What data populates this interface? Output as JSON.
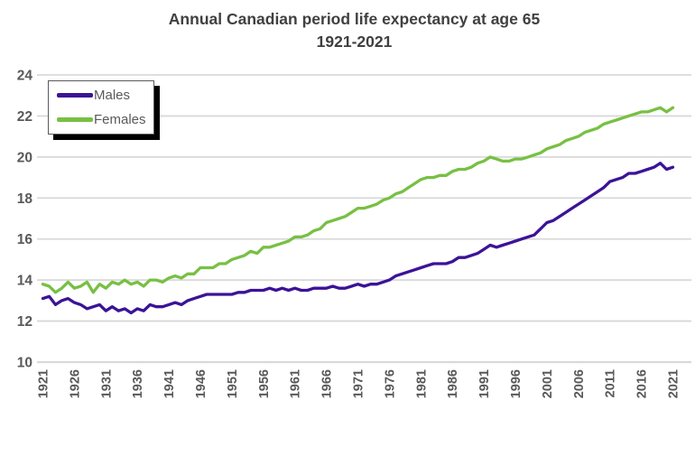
{
  "title": {
    "line1": "Annual Canadian period life expectancy at age 65",
    "line2": "1921-2021"
  },
  "colors": {
    "males_line": "#3B1397",
    "females_line": "#77C043",
    "gridline": "#D9D9D9",
    "axis_labels": "#595959",
    "title_text": "#404040",
    "legend_border": "#595959",
    "legend_shadow": "#000000",
    "background": "#FFFFFF"
  },
  "chart_data": {
    "type": "line",
    "title": "Annual Canadian period life expectancy at age 65",
    "subtitle": "1921-2021",
    "xlabel": "",
    "ylabel": "",
    "ylim": [
      10,
      24
    ],
    "yticks": [
      10,
      12,
      14,
      16,
      18,
      20,
      22,
      24
    ],
    "xticks": [
      1921,
      1926,
      1931,
      1936,
      1941,
      1946,
      1951,
      1956,
      1961,
      1966,
      1971,
      1976,
      1981,
      1986,
      1991,
      1996,
      2001,
      2006,
      2011,
      2016,
      2021
    ],
    "grid": true,
    "legend_position": "top-left",
    "years": [
      1921,
      1922,
      1923,
      1924,
      1925,
      1926,
      1927,
      1928,
      1929,
      1930,
      1931,
      1932,
      1933,
      1934,
      1935,
      1936,
      1937,
      1938,
      1939,
      1940,
      1941,
      1942,
      1943,
      1944,
      1945,
      1946,
      1947,
      1948,
      1949,
      1950,
      1951,
      1952,
      1953,
      1954,
      1955,
      1956,
      1957,
      1958,
      1959,
      1960,
      1961,
      1962,
      1963,
      1964,
      1965,
      1966,
      1967,
      1968,
      1969,
      1970,
      1971,
      1972,
      1973,
      1974,
      1975,
      1976,
      1977,
      1978,
      1979,
      1980,
      1981,
      1982,
      1983,
      1984,
      1985,
      1986,
      1987,
      1988,
      1989,
      1990,
      1991,
      1992,
      1993,
      1994,
      1995,
      1996,
      1997,
      1998,
      1999,
      2000,
      2001,
      2002,
      2003,
      2004,
      2005,
      2006,
      2007,
      2008,
      2009,
      2010,
      2011,
      2012,
      2013,
      2014,
      2015,
      2016,
      2017,
      2018,
      2019,
      2020,
      2021
    ],
    "series": [
      {
        "name": "Males",
        "color": "#3B1397",
        "values": [
          13.1,
          13.2,
          12.8,
          13.0,
          13.1,
          12.9,
          12.8,
          12.6,
          12.7,
          12.8,
          12.5,
          12.7,
          12.5,
          12.6,
          12.4,
          12.6,
          12.5,
          12.8,
          12.7,
          12.7,
          12.8,
          12.9,
          12.8,
          13.0,
          13.1,
          13.2,
          13.3,
          13.3,
          13.3,
          13.3,
          13.3,
          13.4,
          13.4,
          13.5,
          13.5,
          13.5,
          13.6,
          13.5,
          13.6,
          13.5,
          13.6,
          13.5,
          13.5,
          13.6,
          13.6,
          13.6,
          13.7,
          13.6,
          13.6,
          13.7,
          13.8,
          13.7,
          13.8,
          13.8,
          13.9,
          14.0,
          14.2,
          14.3,
          14.4,
          14.5,
          14.6,
          14.7,
          14.8,
          14.8,
          14.8,
          14.9,
          15.1,
          15.1,
          15.2,
          15.3,
          15.5,
          15.7,
          15.6,
          15.7,
          15.8,
          15.9,
          16.0,
          16.1,
          16.2,
          16.5,
          16.8,
          16.9,
          17.1,
          17.3,
          17.5,
          17.7,
          17.9,
          18.1,
          18.3,
          18.5,
          18.8,
          18.9,
          19.0,
          19.2,
          19.2,
          19.3,
          19.4,
          19.5,
          19.7,
          19.4,
          19.5
        ]
      },
      {
        "name": "Females",
        "color": "#77C043",
        "values": [
          13.8,
          13.7,
          13.4,
          13.6,
          13.9,
          13.6,
          13.7,
          13.9,
          13.4,
          13.8,
          13.6,
          13.9,
          13.8,
          14.0,
          13.8,
          13.9,
          13.7,
          14.0,
          14.0,
          13.9,
          14.1,
          14.2,
          14.1,
          14.3,
          14.3,
          14.6,
          14.6,
          14.6,
          14.8,
          14.8,
          15.0,
          15.1,
          15.2,
          15.4,
          15.3,
          15.6,
          15.6,
          15.7,
          15.8,
          15.9,
          16.1,
          16.1,
          16.2,
          16.4,
          16.5,
          16.8,
          16.9,
          17.0,
          17.1,
          17.3,
          17.5,
          17.5,
          17.6,
          17.7,
          17.9,
          18.0,
          18.2,
          18.3,
          18.5,
          18.7,
          18.9,
          19.0,
          19.0,
          19.1,
          19.1,
          19.3,
          19.4,
          19.4,
          19.5,
          19.7,
          19.8,
          20.0,
          19.9,
          19.8,
          19.8,
          19.9,
          19.9,
          20.0,
          20.1,
          20.2,
          20.4,
          20.5,
          20.6,
          20.8,
          20.9,
          21.0,
          21.2,
          21.3,
          21.4,
          21.6,
          21.7,
          21.8,
          21.9,
          22.0,
          22.1,
          22.2,
          22.2,
          22.3,
          22.4,
          22.2,
          22.4
        ]
      }
    ]
  }
}
